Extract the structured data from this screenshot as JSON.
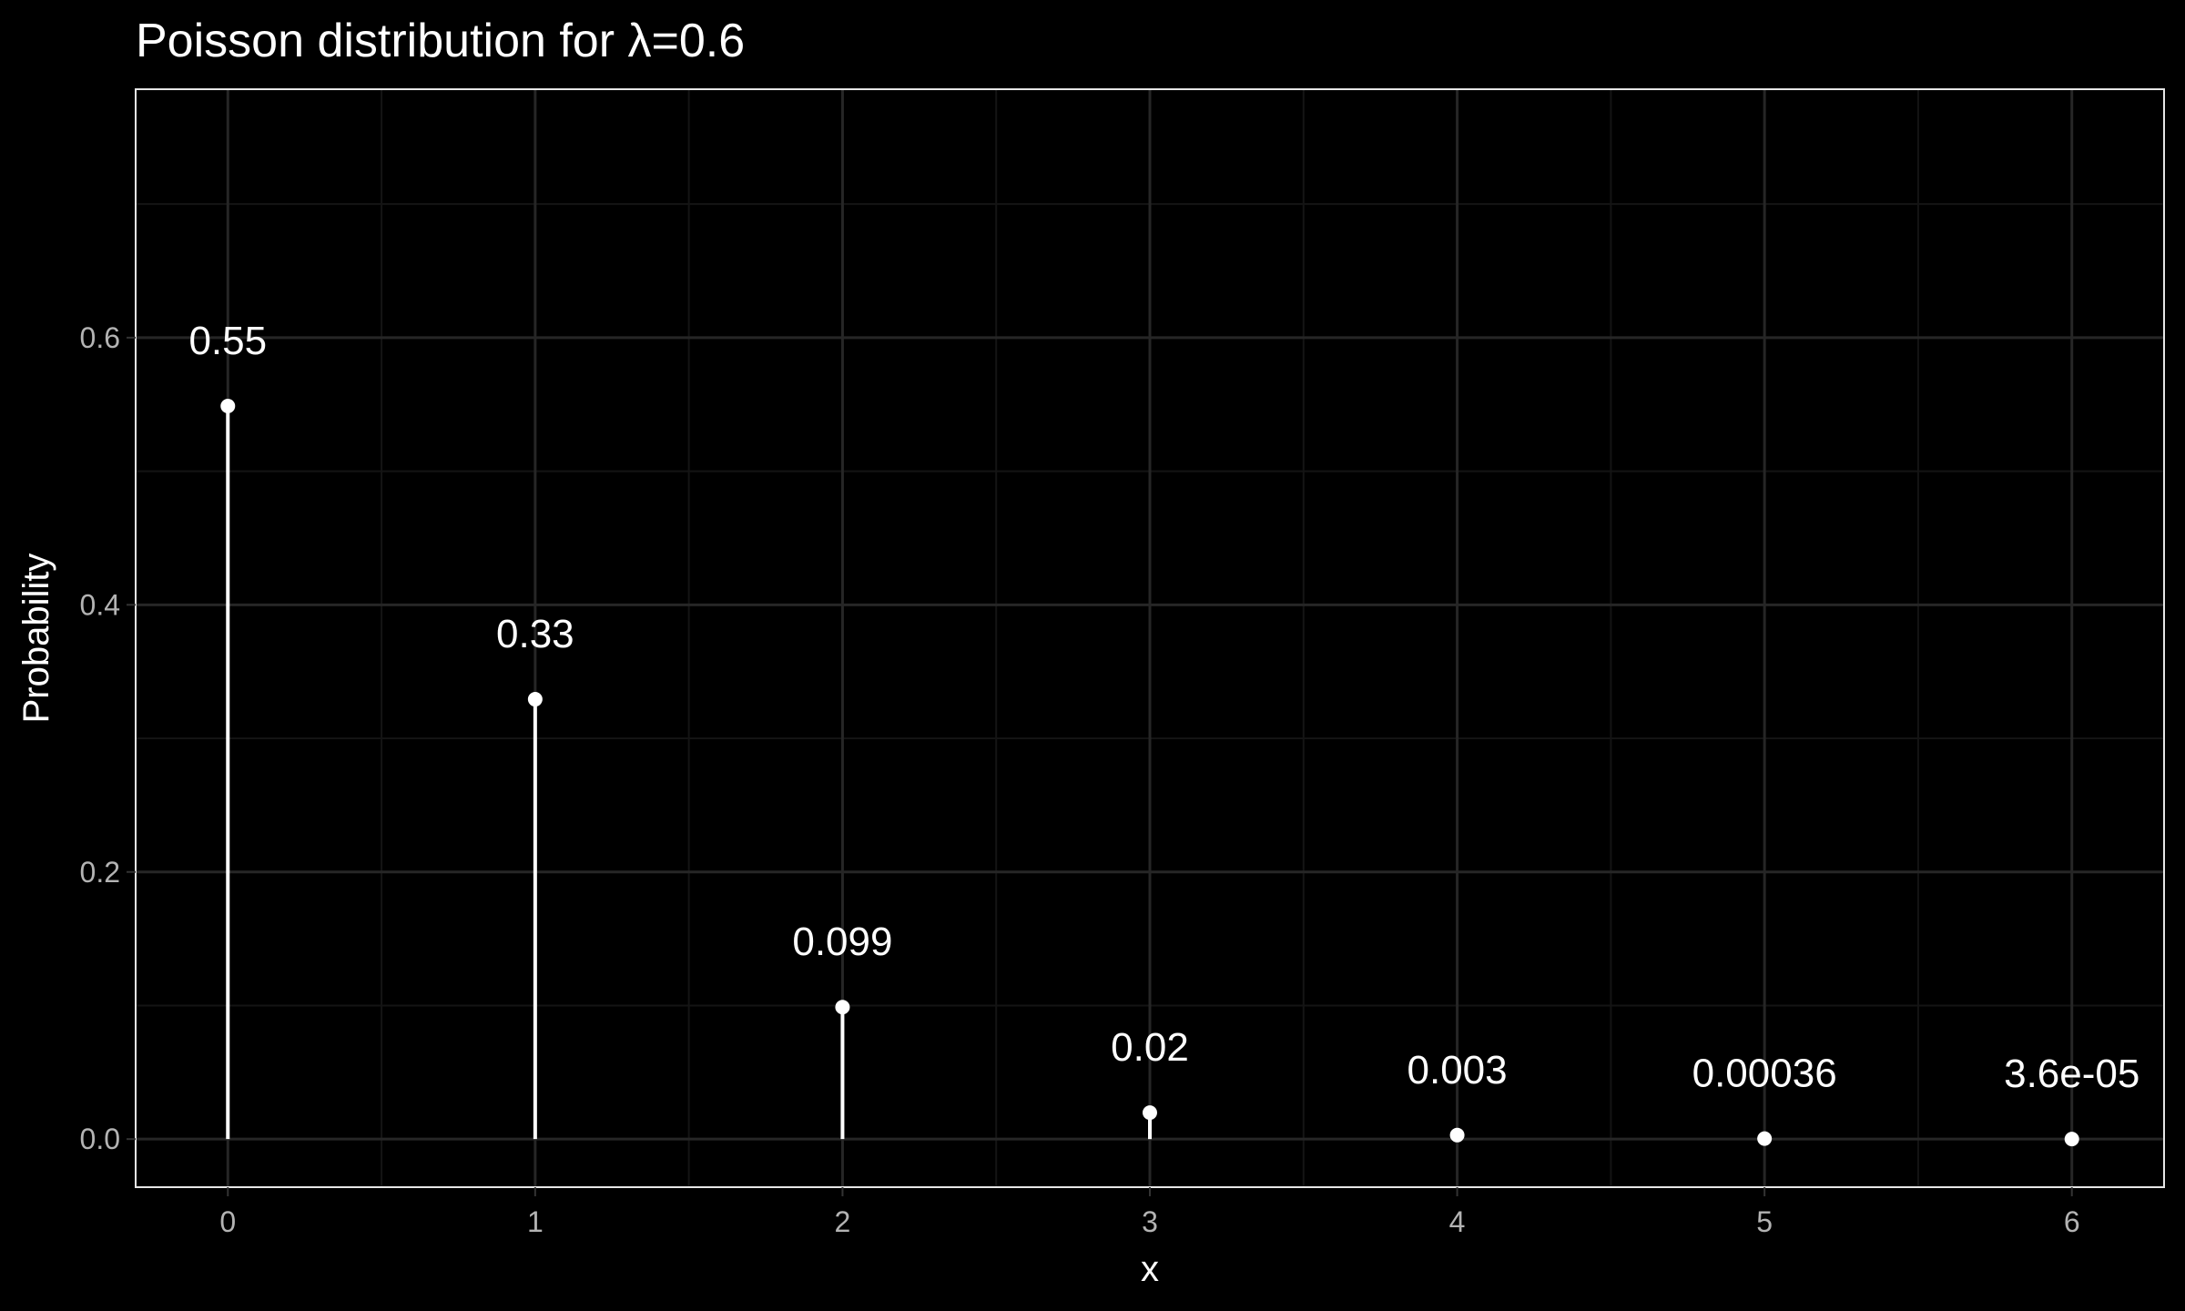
{
  "chart_data": {
    "type": "lollipop",
    "title": "Poisson distribution for λ=0.6",
    "xlabel": "x",
    "ylabel": "Probability",
    "x": [
      0,
      1,
      2,
      3,
      4,
      5,
      6
    ],
    "x_tick_labels": [
      "0",
      "1",
      "2",
      "3",
      "4",
      "5",
      "6"
    ],
    "values": [
      0.5488,
      0.3293,
      0.0988,
      0.0198,
      0.003,
      0.00036,
      3.6e-05
    ],
    "value_labels": [
      "0.55",
      "0.33",
      "0.099",
      "0.02",
      "0.003",
      "0.00036",
      "3.6e-05"
    ],
    "y_ticks": [
      0.0,
      0.2,
      0.4,
      0.6
    ],
    "y_tick_labels": [
      "0.0",
      "0.2",
      "0.4",
      "0.6"
    ],
    "xlim": [
      -0.3,
      6.3
    ],
    "ylim": [
      -0.036,
      0.786
    ],
    "grid": true,
    "colors": {
      "background": "#000000",
      "panel_border": "#e6e6e6",
      "grid_major": "#262626",
      "grid_minor": "#141414",
      "marks": "#ffffff",
      "tick_text": "#b3b3b3"
    }
  }
}
